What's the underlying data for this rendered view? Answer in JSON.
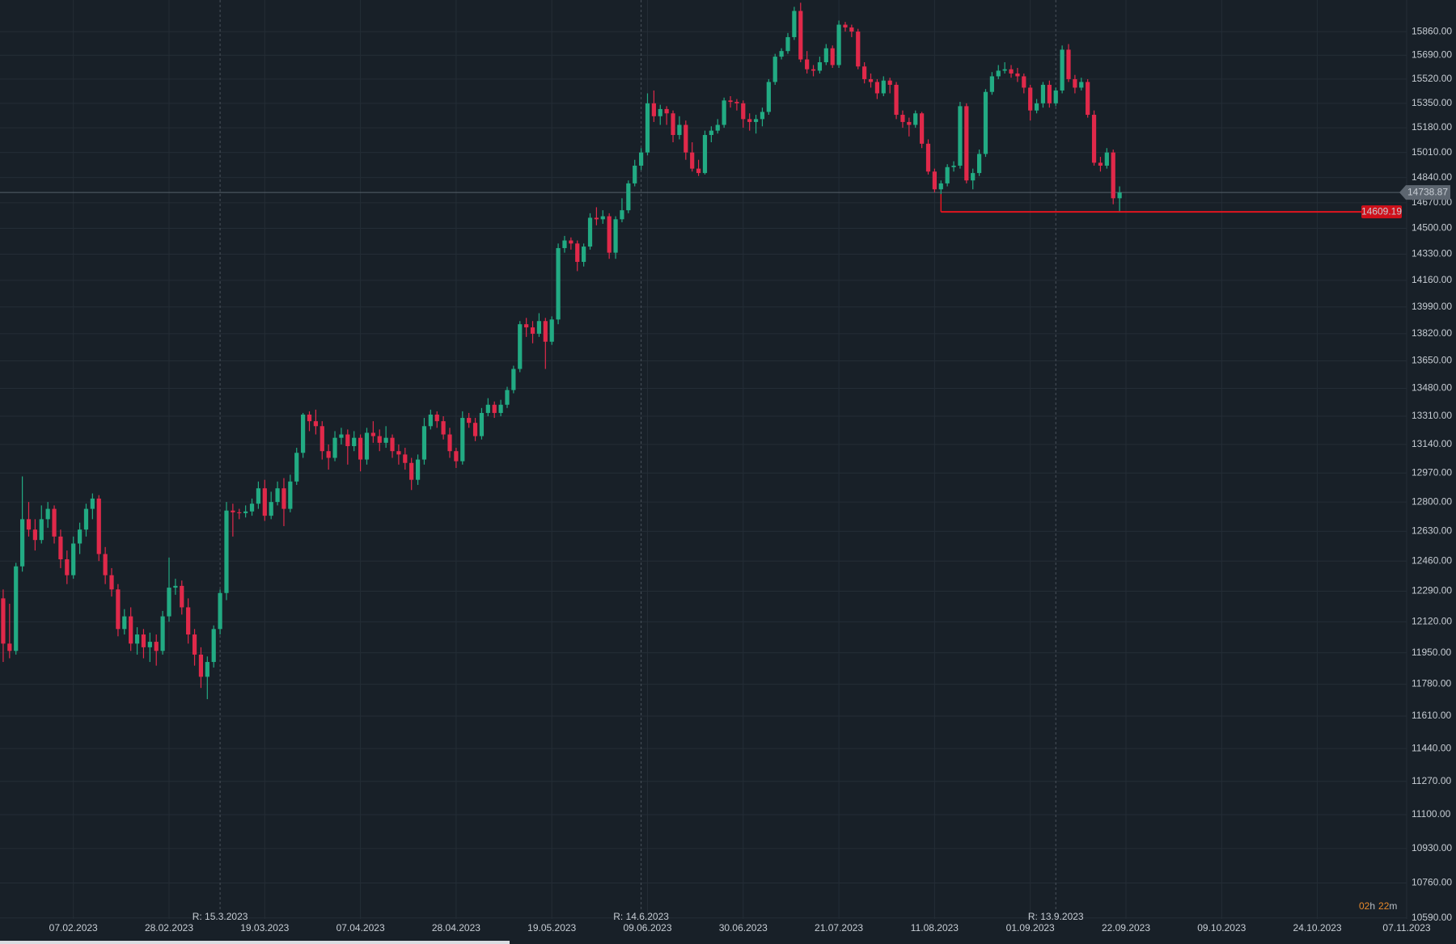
{
  "chart_data": {
    "type": "candlestick",
    "log_scale": true,
    "grid": true,
    "up_color": "#22ab83",
    "down_color": "#e0294a",
    "ylim": [
      10585,
      16090
    ],
    "xlim": [
      -0.5,
      220
    ],
    "yticks": [
      {
        "value": 15860,
        "label": "15860.00"
      },
      {
        "value": 15690,
        "label": "15690.00"
      },
      {
        "value": 15520,
        "label": "15520.00"
      },
      {
        "value": 15350,
        "label": "15350.00"
      },
      {
        "value": 15180,
        "label": "15180.00"
      },
      {
        "value": 15010,
        "label": "15010.00"
      },
      {
        "value": 14840,
        "label": "14840.00"
      },
      {
        "value": 14670,
        "label": "14670.00"
      },
      {
        "value": 14500,
        "label": "14500.00"
      },
      {
        "value": 14330,
        "label": "14330.00"
      },
      {
        "value": 14160,
        "label": "14160.00"
      },
      {
        "value": 13990,
        "label": "13990.00"
      },
      {
        "value": 13820,
        "label": "13820.00"
      },
      {
        "value": 13650,
        "label": "13650.00"
      },
      {
        "value": 13480,
        "label": "13480.00"
      },
      {
        "value": 13310,
        "label": "13310.00"
      },
      {
        "value": 13140,
        "label": "13140.00"
      },
      {
        "value": 12970,
        "label": "12970.00"
      },
      {
        "value": 12800,
        "label": "12800.00"
      },
      {
        "value": 12630,
        "label": "12630.00"
      },
      {
        "value": 12460,
        "label": "12460.00"
      },
      {
        "value": 12290,
        "label": "12290.00"
      },
      {
        "value": 12120,
        "label": "12120.00"
      },
      {
        "value": 11950,
        "label": "11950.00"
      },
      {
        "value": 11780,
        "label": "11780.00"
      },
      {
        "value": 11610,
        "label": "11610.00"
      },
      {
        "value": 11440,
        "label": "11440.00"
      },
      {
        "value": 11270,
        "label": "11270.00"
      },
      {
        "value": 11100,
        "label": "11100.00"
      },
      {
        "value": 10930,
        "label": "10930.00"
      },
      {
        "value": 10760,
        "label": "10760.00"
      },
      {
        "value": 10590,
        "label": "10590.00"
      }
    ],
    "xticks": [
      {
        "value": 11,
        "label": "07.02.2023"
      },
      {
        "value": 26,
        "label": "28.02.2023"
      },
      {
        "value": 41,
        "label": "19.03.2023"
      },
      {
        "value": 56,
        "label": "07.04.2023"
      },
      {
        "value": 71,
        "label": "28.04.2023"
      },
      {
        "value": 86,
        "label": "19.05.2023"
      },
      {
        "value": 101,
        "label": "09.06.2023"
      },
      {
        "value": 116,
        "label": "30.06.2023"
      },
      {
        "value": 131,
        "label": "21.07.2023"
      },
      {
        "value": 146,
        "label": "11.08.2023"
      },
      {
        "value": 161,
        "label": "01.09.2023"
      },
      {
        "value": 176,
        "label": "22.09.2023"
      },
      {
        "value": 191,
        "label": "09.10.2023"
      },
      {
        "value": 206,
        "label": "24.10.2023"
      },
      {
        "value": 220,
        "label": "07.11.2023"
      }
    ],
    "markers": [
      {
        "x": 34,
        "label": "R: 15.3.2023"
      },
      {
        "x": 100,
        "label": "R: 14.6.2023"
      },
      {
        "x": 165,
        "label": "R: 13.9.2023"
      }
    ],
    "last_price": {
      "value": 14738.87,
      "label": "14738.87"
    },
    "level_line": {
      "value": 14609.19,
      "label": "14609.19",
      "x_start": 147
    },
    "countdown": [
      "02",
      "h",
      "22",
      "m"
    ],
    "candles": [
      [
        12250,
        12300,
        11900,
        12000
      ],
      [
        12000,
        12220,
        11920,
        11960
      ],
      [
        11960,
        12450,
        11940,
        12430
      ],
      [
        12430,
        12950,
        12400,
        12700
      ],
      [
        12700,
        12800,
        12600,
        12640
      ],
      [
        12640,
        12700,
        12520,
        12580
      ],
      [
        12580,
        12780,
        12560,
        12700
      ],
      [
        12700,
        12800,
        12650,
        12760
      ],
      [
        12760,
        12780,
        12560,
        12600
      ],
      [
        12600,
        12640,
        12420,
        12470
      ],
      [
        12470,
        12520,
        12330,
        12380
      ],
      [
        12380,
        12600,
        12360,
        12560
      ],
      [
        12560,
        12680,
        12500,
        12640
      ],
      [
        12640,
        12790,
        12600,
        12760
      ],
      [
        12760,
        12850,
        12700,
        12820
      ],
      [
        12820,
        12840,
        12460,
        12500
      ],
      [
        12500,
        12540,
        12330,
        12380
      ],
      [
        12380,
        12420,
        12260,
        12300
      ],
      [
        12300,
        12330,
        12040,
        12080
      ],
      [
        12080,
        12190,
        12050,
        12150
      ],
      [
        12150,
        12200,
        11960,
        12000
      ],
      [
        12000,
        12090,
        11940,
        12050
      ],
      [
        12050,
        12080,
        11920,
        11980
      ],
      [
        11980,
        12060,
        11900,
        12010
      ],
      [
        12010,
        12050,
        11880,
        11960
      ],
      [
        11960,
        12180,
        11940,
        12150
      ],
      [
        12150,
        12480,
        12120,
        12310
      ],
      [
        12310,
        12360,
        12270,
        12320
      ],
      [
        12320,
        12350,
        12160,
        12200
      ],
      [
        12200,
        12250,
        12000,
        12050
      ],
      [
        12050,
        12080,
        11880,
        11940
      ],
      [
        11940,
        11980,
        11760,
        11820
      ],
      [
        11820,
        11930,
        11700,
        11900
      ],
      [
        11900,
        12100,
        11870,
        12080
      ],
      [
        12080,
        12300,
        12050,
        12280
      ],
      [
        12280,
        12800,
        12240,
        12750
      ],
      [
        12750,
        12790,
        12600,
        12740
      ],
      [
        12740,
        12760,
        12700,
        12735
      ],
      [
        12735,
        12780,
        12710,
        12745
      ],
      [
        12745,
        12820,
        12720,
        12790
      ],
      [
        12790,
        12920,
        12760,
        12880
      ],
      [
        12880,
        12930,
        12690,
        12720
      ],
      [
        12720,
        12860,
        12700,
        12800
      ],
      [
        12800,
        12920,
        12780,
        12880
      ],
      [
        12880,
        12940,
        12660,
        12760
      ],
      [
        12760,
        12960,
        12740,
        12920
      ],
      [
        12920,
        13120,
        12900,
        13090
      ],
      [
        13090,
        13330,
        13060,
        13320
      ],
      [
        13320,
        13340,
        13220,
        13280
      ],
      [
        13280,
        13350,
        13200,
        13250
      ],
      [
        13250,
        13280,
        13050,
        13100
      ],
      [
        13100,
        13140,
        12990,
        13060
      ],
      [
        13060,
        13220,
        13040,
        13180
      ],
      [
        13180,
        13240,
        13140,
        13200
      ],
      [
        13200,
        13230,
        13020,
        13130
      ],
      [
        13130,
        13220,
        13100,
        13180
      ],
      [
        13180,
        13200,
        12980,
        13050
      ],
      [
        13050,
        13240,
        13020,
        13210
      ],
      [
        13210,
        13280,
        13150,
        13190
      ],
      [
        13190,
        13230,
        13100,
        13150
      ],
      [
        13150,
        13250,
        13120,
        13180
      ],
      [
        13180,
        13200,
        13060,
        13100
      ],
      [
        13100,
        13140,
        13020,
        13080
      ],
      [
        13080,
        13120,
        12990,
        13030
      ],
      [
        13030,
        13060,
        12870,
        12930
      ],
      [
        12930,
        13080,
        12900,
        13050
      ],
      [
        13050,
        13300,
        13020,
        13250
      ],
      [
        13250,
        13350,
        13230,
        13320
      ],
      [
        13320,
        13340,
        13240,
        13280
      ],
      [
        13280,
        13310,
        13170,
        13200
      ],
      [
        13200,
        13240,
        13060,
        13100
      ],
      [
        13100,
        13120,
        13000,
        13040
      ],
      [
        13040,
        13340,
        13020,
        13300
      ],
      [
        13300,
        13330,
        13240,
        13270
      ],
      [
        13270,
        13300,
        13160,
        13190
      ],
      [
        13190,
        13360,
        13170,
        13330
      ],
      [
        13330,
        13420,
        13310,
        13380
      ],
      [
        13380,
        13400,
        13300,
        13330
      ],
      [
        13330,
        13410,
        13310,
        13380
      ],
      [
        13380,
        13490,
        13360,
        13470
      ],
      [
        13470,
        13620,
        13450,
        13600
      ],
      [
        13600,
        13900,
        13580,
        13880
      ],
      [
        13880,
        13920,
        13800,
        13860
      ],
      [
        13860,
        13900,
        13760,
        13820
      ],
      [
        13820,
        13950,
        13800,
        13900
      ],
      [
        13900,
        13920,
        13600,
        13770
      ],
      [
        13770,
        13930,
        13750,
        13910
      ],
      [
        13910,
        14400,
        13880,
        14370
      ],
      [
        14370,
        14450,
        14340,
        14420
      ],
      [
        14420,
        14440,
        14360,
        14400
      ],
      [
        14400,
        14420,
        14220,
        14280
      ],
      [
        14280,
        14400,
        14250,
        14380
      ],
      [
        14380,
        14600,
        14360,
        14570
      ],
      [
        14570,
        14640,
        14520,
        14560
      ],
      [
        14560,
        14620,
        14530,
        14580
      ],
      [
        14580,
        14600,
        14300,
        14340
      ],
      [
        14340,
        14580,
        14300,
        14560
      ],
      [
        14560,
        14700,
        14540,
        14620
      ],
      [
        14620,
        14820,
        14600,
        14800
      ],
      [
        14800,
        14960,
        14780,
        14920
      ],
      [
        14920,
        15040,
        14890,
        15010
      ],
      [
        15010,
        15420,
        14990,
        15350
      ],
      [
        15350,
        15440,
        15220,
        15260
      ],
      [
        15260,
        15340,
        15200,
        15310
      ],
      [
        15310,
        15330,
        15200,
        15280
      ],
      [
        15280,
        15300,
        15080,
        15130
      ],
      [
        15130,
        15260,
        15100,
        15200
      ],
      [
        15200,
        15230,
        14960,
        15010
      ],
      [
        15010,
        15080,
        14880,
        14900
      ],
      [
        14900,
        14960,
        14850,
        14870
      ],
      [
        14870,
        15160,
        14860,
        15130
      ],
      [
        15130,
        15190,
        15080,
        15160
      ],
      [
        15160,
        15240,
        15140,
        15200
      ],
      [
        15200,
        15390,
        15180,
        15370
      ],
      [
        15370,
        15400,
        15320,
        15360
      ],
      [
        15360,
        15380,
        15300,
        15350
      ],
      [
        15350,
        15370,
        15180,
        15240
      ],
      [
        15240,
        15280,
        15160,
        15220
      ],
      [
        15220,
        15270,
        15140,
        15240
      ],
      [
        15240,
        15320,
        15190,
        15290
      ],
      [
        15290,
        15520,
        15270,
        15500
      ],
      [
        15500,
        15700,
        15480,
        15680
      ],
      [
        15680,
        15740,
        15660,
        15720
      ],
      [
        15720,
        15850,
        15700,
        15820
      ],
      [
        15820,
        16040,
        15800,
        16010
      ],
      [
        16010,
        16070,
        15640,
        15660
      ],
      [
        15660,
        15720,
        15560,
        15590
      ],
      [
        15590,
        15620,
        15540,
        15580
      ],
      [
        15580,
        15680,
        15560,
        15640
      ],
      [
        15640,
        15770,
        15620,
        15740
      ],
      [
        15740,
        15760,
        15600,
        15620
      ],
      [
        15620,
        15940,
        15600,
        15910
      ],
      [
        15910,
        15930,
        15860,
        15890
      ],
      [
        15890,
        15910,
        15820,
        15860
      ],
      [
        15860,
        15880,
        15590,
        15610
      ],
      [
        15610,
        15640,
        15490,
        15520
      ],
      [
        15520,
        15560,
        15460,
        15500
      ],
      [
        15500,
        15520,
        15380,
        15420
      ],
      [
        15420,
        15540,
        15400,
        15510
      ],
      [
        15510,
        15530,
        15420,
        15480
      ],
      [
        15480,
        15500,
        15240,
        15270
      ],
      [
        15270,
        15300,
        15180,
        15220
      ],
      [
        15220,
        15250,
        15120,
        15200
      ],
      [
        15200,
        15300,
        15180,
        15280
      ],
      [
        15280,
        15290,
        15040,
        15070
      ],
      [
        15070,
        15100,
        14860,
        14880
      ],
      [
        14880,
        14900,
        14740,
        14760
      ],
      [
        14760,
        14820,
        14700,
        14800
      ],
      [
        14800,
        14930,
        14780,
        14910
      ],
      [
        14910,
        14950,
        14880,
        14920
      ],
      [
        14920,
        15360,
        14900,
        15330
      ],
      [
        15330,
        15350,
        14800,
        14820
      ],
      [
        14820,
        14900,
        14760,
        14870
      ],
      [
        14870,
        15030,
        14850,
        15000
      ],
      [
        15000,
        15450,
        14980,
        15430
      ],
      [
        15430,
        15570,
        15410,
        15540
      ],
      [
        15540,
        15620,
        15520,
        15580
      ],
      [
        15580,
        15640,
        15560,
        15590
      ],
      [
        15590,
        15620,
        15530,
        15560
      ],
      [
        15560,
        15600,
        15500,
        15540
      ],
      [
        15540,
        15560,
        15420,
        15460
      ],
      [
        15460,
        15480,
        15230,
        15300
      ],
      [
        15300,
        15380,
        15280,
        15350
      ],
      [
        15350,
        15500,
        15320,
        15480
      ],
      [
        15480,
        15510,
        15320,
        15350
      ],
      [
        15350,
        15460,
        15330,
        15440
      ],
      [
        15440,
        15760,
        15420,
        15730
      ],
      [
        15730,
        15770,
        15500,
        15520
      ],
      [
        15520,
        15550,
        15420,
        15460
      ],
      [
        15460,
        15530,
        15440,
        15500
      ],
      [
        15500,
        15520,
        15250,
        15270
      ],
      [
        15270,
        15300,
        14920,
        14940
      ],
      [
        14940,
        14980,
        14880,
        14920
      ],
      [
        14920,
        15040,
        14900,
        15010
      ],
      [
        15010,
        15030,
        14660,
        14700
      ],
      [
        14700,
        14780,
        14609.19,
        14738.87
      ]
    ]
  }
}
